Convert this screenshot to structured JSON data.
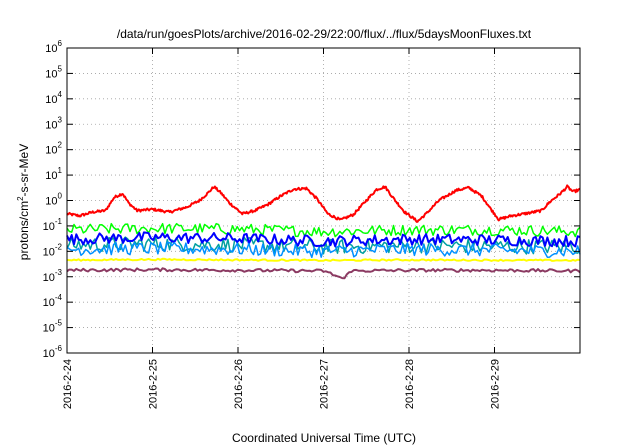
{
  "chart_data": {
    "type": "line",
    "title": "/data/run/goesPlots/archive/2016-02-29/22:00/flux/../flux/5daysMoonFluxes.txt",
    "xlabel": "Coordinated Universal Time (UTC)",
    "ylabel": "protons/cm²-s-sr-MeV",
    "ylabel_parts": {
      "pre": "protons/cm",
      "sup": "2",
      "post": "-s-sr-MeV"
    },
    "y_scale": "log",
    "ylim_exponents": [
      -6,
      6
    ],
    "y_ticks": [
      {
        "base": "10",
        "exp": "-6",
        "v": -6
      },
      {
        "base": "10",
        "exp": "-5",
        "v": -5
      },
      {
        "base": "10",
        "exp": "-4",
        "v": -4
      },
      {
        "base": "10",
        "exp": "-3",
        "v": -3
      },
      {
        "base": "10",
        "exp": "-2",
        "v": -2
      },
      {
        "base": "10",
        "exp": "-1",
        "v": -1
      },
      {
        "base": "10",
        "exp": "0",
        "v": 0
      },
      {
        "base": "10",
        "exp": "1",
        "v": 1
      },
      {
        "base": "10",
        "exp": "2",
        "v": 2
      },
      {
        "base": "10",
        "exp": "3",
        "v": 3
      },
      {
        "base": "10",
        "exp": "4",
        "v": 4
      },
      {
        "base": "10",
        "exp": "5",
        "v": 5
      },
      {
        "base": "10",
        "exp": "6",
        "v": 6
      }
    ],
    "x_ticks": [
      "2016-2-24",
      "2016-2-25",
      "2016-2-26",
      "2016-2-27",
      "2016-2-28",
      "2016-2-29"
    ],
    "x_range_days": [
      0,
      6
    ],
    "grid": true,
    "series": [
      {
        "color": "#ff0000",
        "width": 2,
        "noise": 0.05,
        "smooth": true,
        "points": [
          [
            0,
            0.3
          ],
          [
            0.15,
            0.25
          ],
          [
            0.3,
            0.35
          ],
          [
            0.45,
            0.4
          ],
          [
            0.55,
            1.3
          ],
          [
            0.65,
            1.9
          ],
          [
            0.72,
            0.8
          ],
          [
            0.82,
            0.4
          ],
          [
            1.0,
            0.45
          ],
          [
            1.2,
            0.35
          ],
          [
            1.4,
            0.55
          ],
          [
            1.55,
            1.0
          ],
          [
            1.65,
            2.0
          ],
          [
            1.72,
            3.5
          ],
          [
            1.8,
            2.0
          ],
          [
            1.9,
            0.8
          ],
          [
            2.05,
            0.3
          ],
          [
            2.2,
            0.4
          ],
          [
            2.35,
            0.7
          ],
          [
            2.5,
            1.5
          ],
          [
            2.65,
            2.8
          ],
          [
            2.8,
            3.0
          ],
          [
            2.92,
            1.2
          ],
          [
            3.05,
            0.3
          ],
          [
            3.2,
            0.17
          ],
          [
            3.35,
            0.28
          ],
          [
            3.5,
            1.0
          ],
          [
            3.62,
            2.7
          ],
          [
            3.72,
            3.5
          ],
          [
            3.82,
            1.2
          ],
          [
            3.95,
            0.35
          ],
          [
            4.1,
            0.15
          ],
          [
            4.2,
            0.3
          ],
          [
            4.35,
            1.0
          ],
          [
            4.55,
            2.5
          ],
          [
            4.7,
            3.2
          ],
          [
            4.85,
            1.5
          ],
          [
            4.95,
            0.5
          ],
          [
            5.05,
            0.18
          ],
          [
            5.2,
            0.25
          ],
          [
            5.35,
            0.3
          ],
          [
            5.55,
            0.4
          ],
          [
            5.65,
            0.9
          ],
          [
            5.78,
            2.0
          ],
          [
            5.85,
            3.5
          ],
          [
            5.92,
            2.2
          ],
          [
            6.0,
            2.7
          ]
        ]
      },
      {
        "color": "#00ff00",
        "width": 1.5,
        "noise": 0.22,
        "smooth": false,
        "points": [
          [
            0,
            0.07
          ],
          [
            1,
            0.08
          ],
          [
            2,
            0.075
          ],
          [
            3,
            0.06
          ],
          [
            4,
            0.07
          ],
          [
            5,
            0.07
          ],
          [
            6,
            0.06
          ]
        ]
      },
      {
        "color": "#00a0a0",
        "width": 1.5,
        "noise": 0.3,
        "smooth": false,
        "points": [
          [
            0,
            0.018
          ],
          [
            1,
            0.02
          ],
          [
            2,
            0.018
          ],
          [
            3,
            0.015
          ],
          [
            4,
            0.017
          ],
          [
            5,
            0.016
          ],
          [
            6,
            0.015
          ]
        ]
      },
      {
        "color": "#0000ff",
        "width": 2,
        "noise": 0.22,
        "smooth": false,
        "points": [
          [
            0,
            0.03
          ],
          [
            1,
            0.035
          ],
          [
            2,
            0.032
          ],
          [
            3,
            0.025
          ],
          [
            4,
            0.03
          ],
          [
            5,
            0.028
          ],
          [
            6,
            0.025
          ]
        ]
      },
      {
        "color": "#0090ff",
        "width": 1.5,
        "noise": 0.25,
        "smooth": false,
        "points": [
          [
            0,
            0.012
          ],
          [
            1,
            0.013
          ],
          [
            2,
            0.012
          ],
          [
            3,
            0.01
          ],
          [
            4,
            0.012
          ],
          [
            5,
            0.011
          ],
          [
            6,
            0.01
          ]
        ]
      },
      {
        "color": "#ffff00",
        "width": 2,
        "noise": 0.03,
        "smooth": false,
        "points": [
          [
            0,
            0.0045
          ],
          [
            1,
            0.0048
          ],
          [
            2,
            0.0046
          ],
          [
            3,
            0.0044
          ],
          [
            4,
            0.0046
          ],
          [
            5,
            0.0045
          ],
          [
            6,
            0.0044
          ]
        ]
      },
      {
        "color": "#8b3a62",
        "width": 2,
        "noise": 0.06,
        "smooth": false,
        "points": [
          [
            0,
            0.0018
          ],
          [
            1,
            0.0019
          ],
          [
            2,
            0.0018
          ],
          [
            3,
            0.0017
          ],
          [
            3.25,
            0.0008
          ],
          [
            3.3,
            0.0017
          ],
          [
            4,
            0.0018
          ],
          [
            5,
            0.0018
          ],
          [
            6,
            0.0017
          ]
        ]
      }
    ]
  }
}
